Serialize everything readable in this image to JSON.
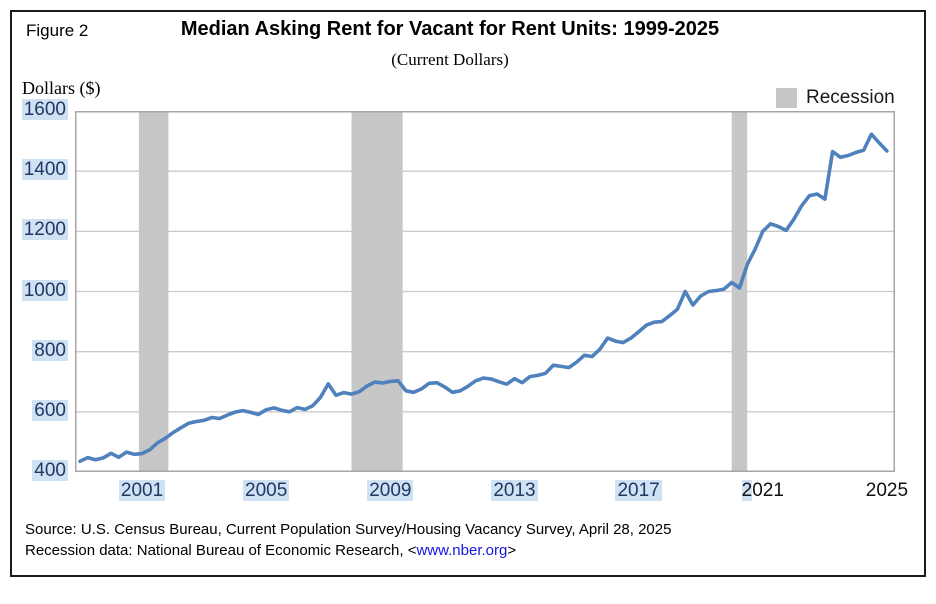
{
  "figure_label": "Figure 2",
  "title": "Median Asking Rent for Vacant for Rent Units: 1999-2025",
  "subtitle": "(Current Dollars)",
  "y_axis_title": "Dollars ($)",
  "legend": {
    "recession_label": "Recession"
  },
  "source": {
    "line1": "Source: U.S. Census Bureau, Current Population Survey/Housing Vacancy Survey, April 28, 2025",
    "line2_prefix": "Recession data: National Bureau of Economic Research, <",
    "line2_link": "www.nber.org",
    "line2_suffix": ">"
  },
  "colors": {
    "line": "#4f81bd",
    "recession_band": "#c7c7c7",
    "legend_swatch": "#c7c7c7",
    "gridline": "#cbcbcb",
    "plot_border": "#a6a6a6",
    "tick_highlight_bg": "#cfe2f3",
    "tick_highlight_text": "#1f3864",
    "link_blue": "#1414e0"
  },
  "chart_data": {
    "type": "line",
    "title": "Median Asking Rent for Vacant for Rent Units: 1999-2025",
    "subtitle": "(Current Dollars)",
    "ylabel": "Dollars ($)",
    "xlabel": "",
    "grid": "horizontal",
    "legend_position": "top-right",
    "ylim": [
      400,
      1600
    ],
    "xlim": [
      1998.84,
      2025.26
    ],
    "frequency": "quarterly",
    "x_period_start": "1999 Q1",
    "x_period_end": "2025 Q1",
    "y_ticks_display": [
      1600,
      1400,
      1200,
      1000,
      800,
      600,
      400
    ],
    "y_gridlines": [
      600,
      800,
      1000,
      1200,
      1400
    ],
    "x_ticks": [
      {
        "year": 2001,
        "label": "2001",
        "highlight": "full"
      },
      {
        "year": 2005,
        "label": "2005",
        "highlight": "full"
      },
      {
        "year": 2009,
        "label": "2009",
        "highlight": "full"
      },
      {
        "year": 2013,
        "label": "2013",
        "highlight": "full"
      },
      {
        "year": 2017,
        "label": "2017",
        "highlight": "full"
      },
      {
        "year": 2021,
        "label": "2021",
        "highlight": "partial"
      },
      {
        "year": 2025,
        "label": "2025",
        "highlight": "none"
      }
    ],
    "recession_bands": [
      {
        "name": "2001 recession",
        "start": 2000.9,
        "end": 2001.85
      },
      {
        "name": "2007-2009 recession",
        "start": 2007.75,
        "end": 2009.4
      },
      {
        "name": "2020 recession",
        "start": 2020.0,
        "end": 2020.5
      }
    ],
    "series": [
      {
        "name": "Median asking rent (current dollars)",
        "start_year": 1999,
        "values_per_year": 4,
        "values": [
          436,
          448,
          441,
          447,
          462,
          449,
          466,
          459,
          461,
          474,
          497,
          512,
          531,
          547,
          562,
          568,
          572,
          581,
          578,
          589,
          599,
          604,
          598,
          591,
          607,
          613,
          605,
          600,
          614,
          608,
          620,
          648,
          693,
          655,
          664,
          659,
          667,
          686,
          699,
          696,
          701,
          703,
          670,
          665,
          676,
          695,
          697,
          683,
          665,
          670,
          685,
          703,
          712,
          709,
          700,
          692,
          710,
          697,
          717,
          721,
          728,
          755,
          751,
          747,
          765,
          788,
          784,
          808,
          845,
          835,
          830,
          845,
          866,
          888,
          898,
          900,
          920,
          941,
          1000,
          955,
          985,
          1000,
          1003,
          1008,
          1030,
          1012,
          1090,
          1140,
          1200,
          1225,
          1216,
          1203,
          1240,
          1285,
          1318,
          1324,
          1307,
          1465,
          1446,
          1452,
          1462,
          1470,
          1523,
          1494,
          1467
        ]
      }
    ]
  }
}
